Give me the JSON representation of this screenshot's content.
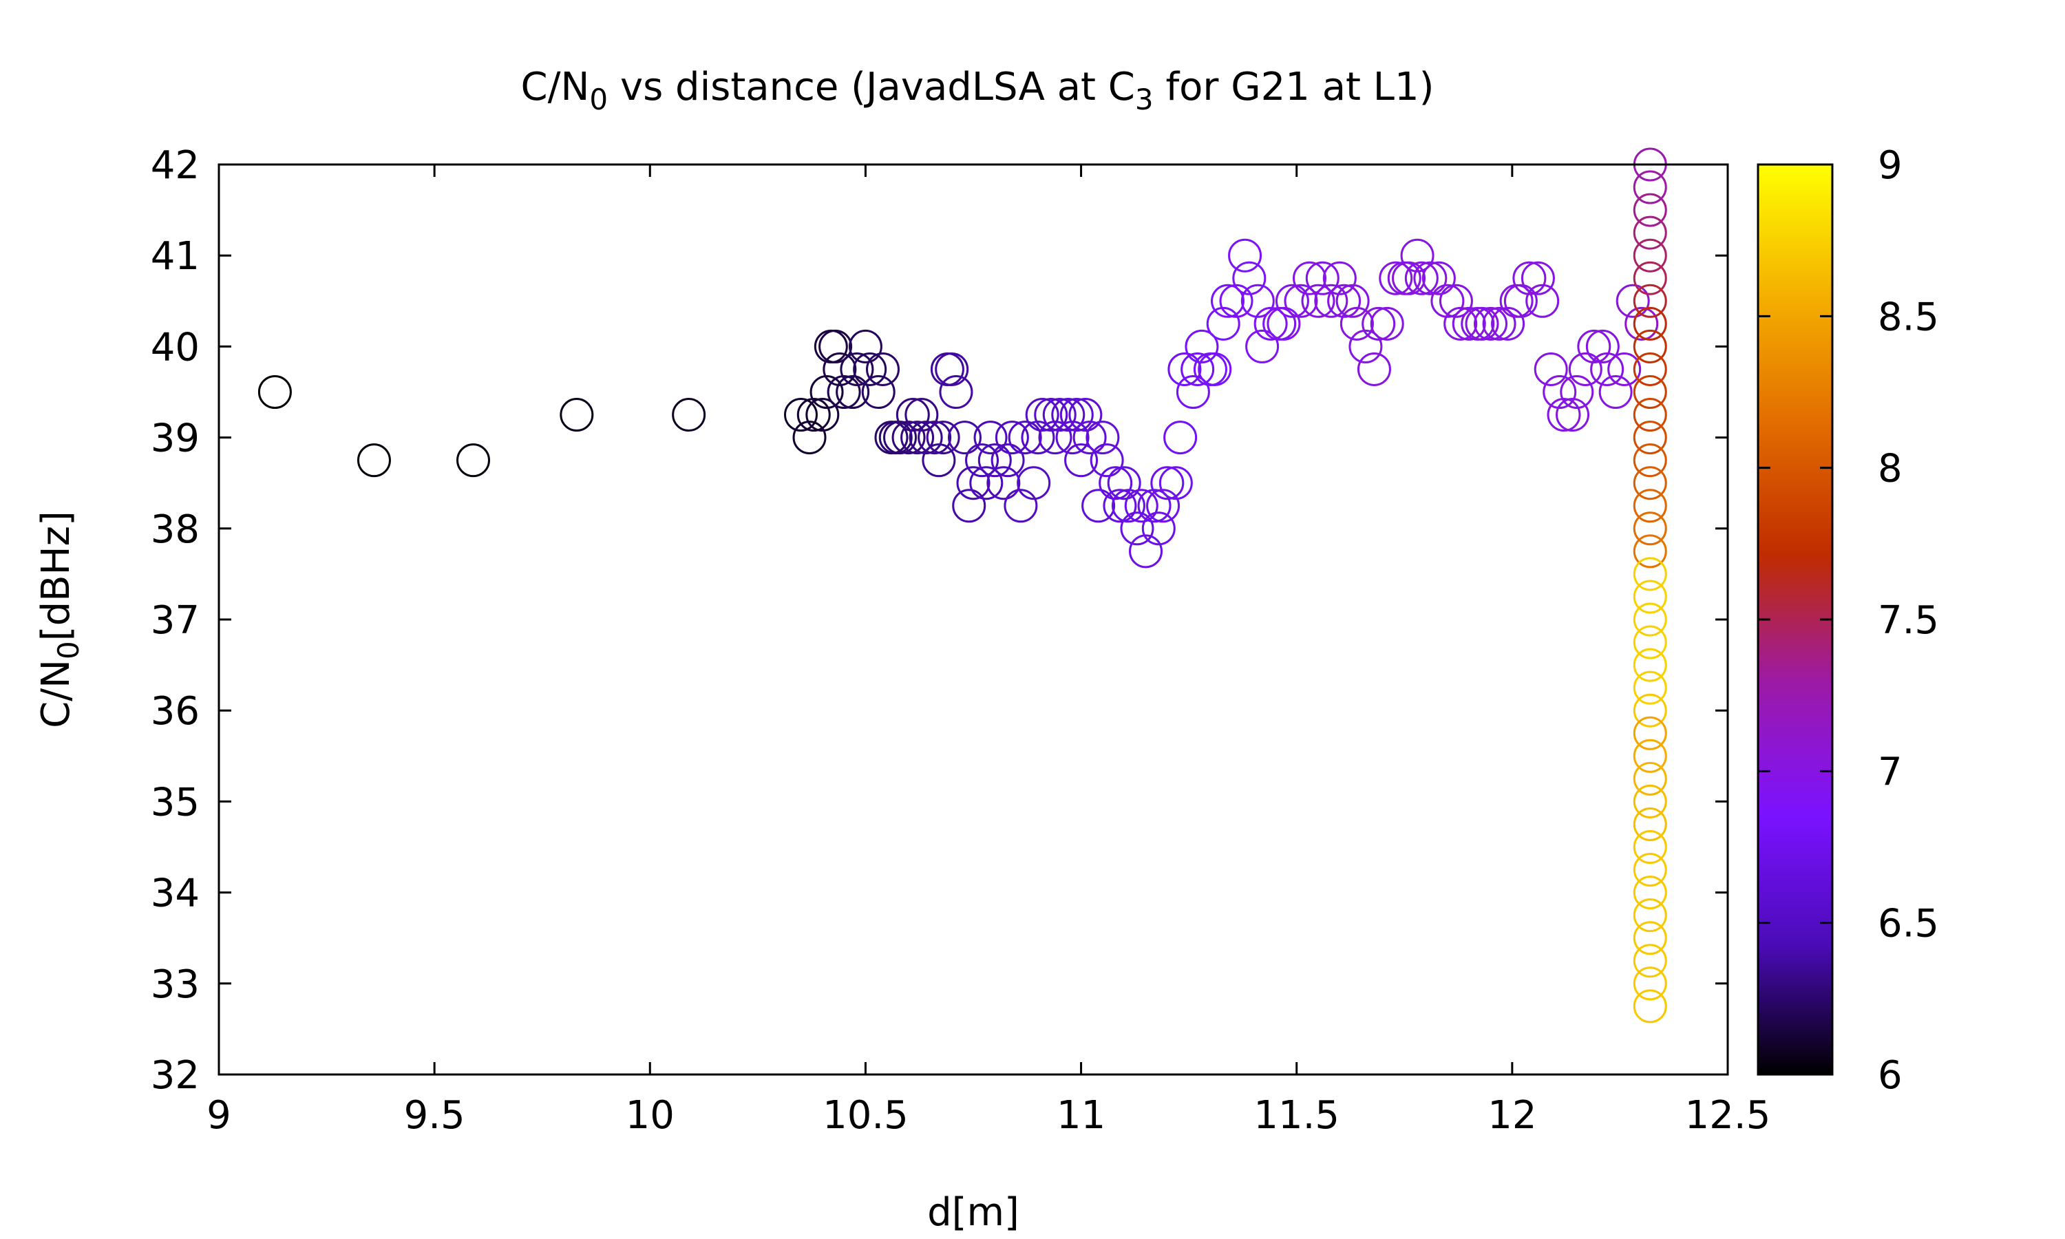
{
  "chart_data": {
    "type": "scatter",
    "title": {
      "base": "C/N",
      "sub0": "0",
      "mid": " vs distance (JavadLSA at C",
      "sub1": "3",
      "tail": " for G21 at L1)"
    },
    "xlabel": "d[m]",
    "ylabel": {
      "base": "C/N",
      "sub": "0",
      "tail": "[dBHz]"
    },
    "xlim": [
      9,
      12.5
    ],
    "ylim": [
      32,
      42
    ],
    "xticks": [
      9,
      9.5,
      10,
      10.5,
      11,
      11.5,
      12,
      12.5
    ],
    "xtick_labels": [
      "9",
      "9.5",
      "10",
      "10.5",
      "11",
      "11.5",
      "12",
      "12.5"
    ],
    "yticks": [
      32,
      33,
      34,
      35,
      36,
      37,
      38,
      39,
      40,
      41,
      42
    ],
    "ytick_labels": [
      "32",
      "33",
      "34",
      "35",
      "36",
      "37",
      "38",
      "39",
      "40",
      "41",
      "42"
    ],
    "marker": "open-circle",
    "grid": false,
    "colorbar": {
      "range": [
        6,
        9
      ],
      "ticks": [
        6,
        6.5,
        7,
        7.5,
        8,
        8.5,
        9
      ],
      "tick_labels": [
        "6",
        "6.5",
        "7",
        "7.5",
        "8",
        "8.5",
        "9"
      ],
      "palette": [
        "#000000",
        "#4b0bb8",
        "#7b12ff",
        "#9c1aa8",
        "#c02c00",
        "#e26c00",
        "#f5b000",
        "#ffff00"
      ]
    },
    "points": [
      [
        9.13,
        39.5,
        6.0
      ],
      [
        9.36,
        38.75,
        6.02
      ],
      [
        9.59,
        38.75,
        6.04
      ],
      [
        9.83,
        39.25,
        6.06
      ],
      [
        10.09,
        39.25,
        6.08
      ],
      [
        10.35,
        39.25,
        6.1
      ],
      [
        10.37,
        39.0,
        6.11
      ],
      [
        10.38,
        39.25,
        6.12
      ],
      [
        10.4,
        39.25,
        6.13
      ],
      [
        10.41,
        39.5,
        6.14
      ],
      [
        10.42,
        40.0,
        6.15
      ],
      [
        10.43,
        40.0,
        6.16
      ],
      [
        10.44,
        39.75,
        6.17
      ],
      [
        10.45,
        39.5,
        6.18
      ],
      [
        10.47,
        39.5,
        6.19
      ],
      [
        10.48,
        39.75,
        6.2
      ],
      [
        10.5,
        40.0,
        6.21
      ],
      [
        10.51,
        39.75,
        6.22
      ],
      [
        10.53,
        39.5,
        6.23
      ],
      [
        10.54,
        39.75,
        6.24
      ],
      [
        10.56,
        39.0,
        6.25
      ],
      [
        10.57,
        39.0,
        6.26
      ],
      [
        10.58,
        39.0,
        6.27
      ],
      [
        10.6,
        39.0,
        6.28
      ],
      [
        10.61,
        39.25,
        6.29
      ],
      [
        10.62,
        39.0,
        6.3
      ],
      [
        10.63,
        39.25,
        6.31
      ],
      [
        10.64,
        39.0,
        6.32
      ],
      [
        10.66,
        39.0,
        6.33
      ],
      [
        10.67,
        38.75,
        6.34
      ],
      [
        10.68,
        39.0,
        6.35
      ],
      [
        10.69,
        39.75,
        6.36
      ],
      [
        10.7,
        39.75,
        6.37
      ],
      [
        10.71,
        39.5,
        6.38
      ],
      [
        10.73,
        39.0,
        6.39
      ],
      [
        10.74,
        38.25,
        6.4
      ],
      [
        10.75,
        38.5,
        6.41
      ],
      [
        10.77,
        38.75,
        6.42
      ],
      [
        10.78,
        38.5,
        6.43
      ],
      [
        10.79,
        39.0,
        6.44
      ],
      [
        10.8,
        38.75,
        6.45
      ],
      [
        10.82,
        38.5,
        6.46
      ],
      [
        10.83,
        38.75,
        6.47
      ],
      [
        10.84,
        39.0,
        6.48
      ],
      [
        10.86,
        38.25,
        6.49
      ],
      [
        10.87,
        39.0,
        6.5
      ],
      [
        10.89,
        38.5,
        6.51
      ],
      [
        10.9,
        39.0,
        6.52
      ],
      [
        10.91,
        39.25,
        6.53
      ],
      [
        10.93,
        39.25,
        6.54
      ],
      [
        10.94,
        39.0,
        6.55
      ],
      [
        10.95,
        39.25,
        6.56
      ],
      [
        10.97,
        39.25,
        6.57
      ],
      [
        10.98,
        39.0,
        6.58
      ],
      [
        10.99,
        39.25,
        6.59
      ],
      [
        11.0,
        38.75,
        6.6
      ],
      [
        11.01,
        39.25,
        6.61
      ],
      [
        11.02,
        39.0,
        6.62
      ],
      [
        11.04,
        38.25,
        6.63
      ],
      [
        11.05,
        39.0,
        6.64
      ],
      [
        11.06,
        38.75,
        6.65
      ],
      [
        11.08,
        38.5,
        6.66
      ],
      [
        11.09,
        38.25,
        6.67
      ],
      [
        11.1,
        38.5,
        6.68
      ],
      [
        11.11,
        38.25,
        6.69
      ],
      [
        11.13,
        38.0,
        6.7
      ],
      [
        11.14,
        38.25,
        6.71
      ],
      [
        11.15,
        37.75,
        6.72
      ],
      [
        11.17,
        38.25,
        6.73
      ],
      [
        11.18,
        38.0,
        6.74
      ],
      [
        11.19,
        38.25,
        6.75
      ],
      [
        11.2,
        38.5,
        6.76
      ],
      [
        11.22,
        38.5,
        6.77
      ],
      [
        11.23,
        39.0,
        6.78
      ],
      [
        11.24,
        39.75,
        6.79
      ],
      [
        11.26,
        39.5,
        6.8
      ],
      [
        11.27,
        39.75,
        6.81
      ],
      [
        11.28,
        40.0,
        6.82
      ],
      [
        11.3,
        39.75,
        6.83
      ],
      [
        11.31,
        39.75,
        6.84
      ],
      [
        11.33,
        40.25,
        6.85
      ],
      [
        11.34,
        40.5,
        6.86
      ],
      [
        11.36,
        40.5,
        6.87
      ],
      [
        11.38,
        41.0,
        6.88
      ],
      [
        11.39,
        40.75,
        6.89
      ],
      [
        11.41,
        40.5,
        6.9
      ],
      [
        11.42,
        40.0,
        6.91
      ],
      [
        11.44,
        40.25,
        6.92
      ],
      [
        11.46,
        40.25,
        6.93
      ],
      [
        11.47,
        40.25,
        6.94
      ],
      [
        11.49,
        40.5,
        6.95
      ],
      [
        11.51,
        40.5,
        6.96
      ],
      [
        11.53,
        40.75,
        6.97
      ],
      [
        11.55,
        40.5,
        6.98
      ],
      [
        11.56,
        40.75,
        6.99
      ],
      [
        11.58,
        40.5,
        7.0
      ],
      [
        11.6,
        40.75,
        7.0
      ],
      [
        11.61,
        40.5,
        7.0
      ],
      [
        11.63,
        40.5,
        7.0
      ],
      [
        11.64,
        40.25,
        7.0
      ],
      [
        11.66,
        40.0,
        7.0
      ],
      [
        11.68,
        39.75,
        7.0
      ],
      [
        11.69,
        40.25,
        7.0
      ],
      [
        11.71,
        40.25,
        7.0
      ],
      [
        11.73,
        40.75,
        7.0
      ],
      [
        11.75,
        40.75,
        7.0
      ],
      [
        11.76,
        40.75,
        7.0
      ],
      [
        11.78,
        41.0,
        7.0
      ],
      [
        11.79,
        40.75,
        7.0
      ],
      [
        11.81,
        40.75,
        7.0
      ],
      [
        11.83,
        40.75,
        7.0
      ],
      [
        11.85,
        40.5,
        7.0
      ],
      [
        11.87,
        40.5,
        7.0
      ],
      [
        11.88,
        40.25,
        7.0
      ],
      [
        11.9,
        40.25,
        7.0
      ],
      [
        11.92,
        40.25,
        7.0
      ],
      [
        11.93,
        40.25,
        7.0
      ],
      [
        11.95,
        40.25,
        7.0
      ],
      [
        11.97,
        40.25,
        7.0
      ],
      [
        11.99,
        40.25,
        7.0
      ],
      [
        12.01,
        40.5,
        7.0
      ],
      [
        12.02,
        40.5,
        7.0
      ],
      [
        12.04,
        40.75,
        7.0
      ],
      [
        12.06,
        40.75,
        7.0
      ],
      [
        12.07,
        40.5,
        7.0
      ],
      [
        12.09,
        39.75,
        7.0
      ],
      [
        12.11,
        39.5,
        7.0
      ],
      [
        12.12,
        39.25,
        7.0
      ],
      [
        12.14,
        39.25,
        7.0
      ],
      [
        12.15,
        39.5,
        7.0
      ],
      [
        12.17,
        39.75,
        7.0
      ],
      [
        12.19,
        40.0,
        7.0
      ],
      [
        12.21,
        40.0,
        7.0
      ],
      [
        12.22,
        39.75,
        7.0
      ],
      [
        12.24,
        39.5,
        7.0
      ],
      [
        12.26,
        39.75,
        7.0
      ],
      [
        12.28,
        40.5,
        7.05
      ],
      [
        12.3,
        40.25,
        7.1
      ],
      [
        12.32,
        42.0,
        7.25
      ],
      [
        12.32,
        41.75,
        7.3
      ],
      [
        12.32,
        41.5,
        7.35
      ],
      [
        12.32,
        41.25,
        7.4
      ],
      [
        12.32,
        41.0,
        7.45
      ],
      [
        12.32,
        40.75,
        7.5
      ],
      [
        12.32,
        40.5,
        7.6
      ],
      [
        12.32,
        40.25,
        7.7
      ],
      [
        12.32,
        40.0,
        7.75
      ],
      [
        12.32,
        39.75,
        7.8
      ],
      [
        12.32,
        39.5,
        7.85
      ],
      [
        12.32,
        39.25,
        7.9
      ],
      [
        12.32,
        39.0,
        7.95
      ],
      [
        12.32,
        38.75,
        8.0
      ],
      [
        12.32,
        38.5,
        8.05
      ],
      [
        12.32,
        38.25,
        8.1
      ],
      [
        12.32,
        38.0,
        8.15
      ],
      [
        12.32,
        37.75,
        8.2
      ],
      [
        12.32,
        37.5,
        8.75
      ],
      [
        12.32,
        37.25,
        8.75
      ],
      [
        12.32,
        37.0,
        8.75
      ],
      [
        12.32,
        36.75,
        8.75
      ],
      [
        12.32,
        36.5,
        8.75
      ],
      [
        12.32,
        36.25,
        8.75
      ],
      [
        12.32,
        36.0,
        8.7
      ],
      [
        12.32,
        35.75,
        8.5
      ],
      [
        12.32,
        35.5,
        8.55
      ],
      [
        12.32,
        35.25,
        8.6
      ],
      [
        12.32,
        35.0,
        8.65
      ],
      [
        12.32,
        34.75,
        8.65
      ],
      [
        12.32,
        34.5,
        8.7
      ],
      [
        12.32,
        34.25,
        8.7
      ],
      [
        12.32,
        34.0,
        8.7
      ],
      [
        12.32,
        33.75,
        8.7
      ],
      [
        12.32,
        33.5,
        8.7
      ],
      [
        12.32,
        33.25,
        8.7
      ],
      [
        12.32,
        33.0,
        8.7
      ],
      [
        12.32,
        32.75,
        8.7
      ]
    ]
  }
}
